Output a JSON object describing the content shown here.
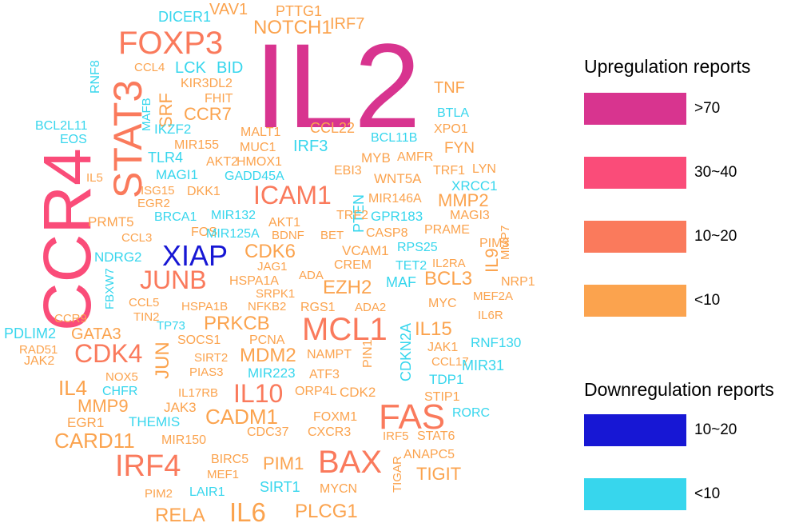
{
  "legend": {
    "up_title": "Upregulation reports",
    "down_title": "Downregulation reports",
    "up_items": [
      {
        "label": ">70",
        "color": "#d8348f"
      },
      {
        "label": "30~40",
        "color": "#fa4c79"
      },
      {
        "label": "10~20",
        "color": "#fa7a5c"
      },
      {
        "label": "<10",
        "color": "#fba34e"
      }
    ],
    "down_items": [
      {
        "label": "10~20",
        "color": "#1717d4"
      },
      {
        "label": "<10",
        "color": "#37d6ed"
      }
    ]
  },
  "words": [
    {
      "text": "IL2",
      "cat": "up_gt70"
    },
    {
      "text": "CCR4",
      "cat": "up_30_40"
    },
    {
      "text": "STAT3",
      "cat": "up_10_20"
    },
    {
      "text": "FOXP3",
      "cat": "up_10_20"
    },
    {
      "text": "XIAP",
      "cat": "down_10_20"
    },
    {
      "text": "MCL1",
      "cat": "up_10_20"
    },
    {
      "text": "FAS",
      "cat": "up_10_20"
    },
    {
      "text": "BAX",
      "cat": "up_10_20"
    },
    {
      "text": "IRF4",
      "cat": "up_10_20"
    },
    {
      "text": "JUNB",
      "cat": "up_10_20"
    },
    {
      "text": "CDK4",
      "cat": "up_10_20"
    },
    {
      "text": "ICAM1",
      "cat": "up_10_20"
    },
    {
      "text": "IL10",
      "cat": "up_10_20"
    },
    {
      "text": "IL6",
      "cat": "up_lt10"
    },
    {
      "text": "CADM1",
      "cat": "up_lt10"
    },
    {
      "text": "CARD11",
      "cat": "up_lt10"
    },
    {
      "text": "NOTCH1",
      "cat": "up_lt10"
    },
    {
      "text": "PRKCB",
      "cat": "up_lt10"
    },
    {
      "text": "CDK6",
      "cat": "up_lt10"
    },
    {
      "text": "MDM2",
      "cat": "up_lt10"
    },
    {
      "text": "EZH2",
      "cat": "up_lt10"
    },
    {
      "text": "BCL3",
      "cat": "up_lt10"
    },
    {
      "text": "IL15",
      "cat": "up_lt10"
    },
    {
      "text": "PLCG1",
      "cat": "up_lt10"
    },
    {
      "text": "RELA",
      "cat": "up_lt10"
    },
    {
      "text": "MMP9",
      "cat": "up_lt10"
    },
    {
      "text": "IL4",
      "cat": "up_lt10"
    },
    {
      "text": "GATA3",
      "cat": "up_lt10"
    },
    {
      "text": "TIGIT",
      "cat": "up_lt10"
    },
    {
      "text": "PIM1",
      "cat": "up_lt10"
    },
    {
      "text": "MMP2",
      "cat": "up_lt10"
    },
    {
      "text": "CCR7",
      "cat": "up_lt10"
    },
    {
      "text": "SRF",
      "cat": "up_lt10"
    },
    {
      "text": "JUN",
      "cat": "up_lt10"
    },
    {
      "text": "IL9",
      "cat": "up_lt10"
    },
    {
      "text": "VAV1",
      "cat": "up_lt10"
    },
    {
      "text": "IRF7",
      "cat": "up_lt10"
    },
    {
      "text": "PTTG1",
      "cat": "up_lt10"
    },
    {
      "text": "DICER1",
      "cat": "down_lt10"
    },
    {
      "text": "LCK",
      "cat": "down_lt10"
    },
    {
      "text": "BID",
      "cat": "down_lt10"
    },
    {
      "text": "CCL4",
      "cat": "up_lt10"
    },
    {
      "text": "KIR3DL2",
      "cat": "up_lt10"
    },
    {
      "text": "FHIT",
      "cat": "up_lt10"
    },
    {
      "text": "RNF8",
      "cat": "down_lt10"
    },
    {
      "text": "MAFB",
      "cat": "down_lt10"
    },
    {
      "text": "TNF",
      "cat": "up_lt10"
    },
    {
      "text": "BTLA",
      "cat": "down_lt10"
    },
    {
      "text": "XPO1",
      "cat": "up_lt10"
    },
    {
      "text": "BCL2L11",
      "cat": "down_lt10"
    },
    {
      "text": "EOS",
      "cat": "down_lt10"
    },
    {
      "text": "IKZF2",
      "cat": "down_lt10"
    },
    {
      "text": "MALT1",
      "cat": "up_lt10"
    },
    {
      "text": "CCL22",
      "cat": "up_lt10"
    },
    {
      "text": "BCL11B",
      "cat": "down_lt10"
    },
    {
      "text": "MIR155",
      "cat": "up_lt10"
    },
    {
      "text": "MUC1",
      "cat": "up_lt10"
    },
    {
      "text": "IRF3",
      "cat": "down_lt10"
    },
    {
      "text": "FYN",
      "cat": "up_lt10"
    },
    {
      "text": "TLR4",
      "cat": "down_lt10"
    },
    {
      "text": "AKT2",
      "cat": "up_lt10"
    },
    {
      "text": "HMOX1",
      "cat": "up_lt10"
    },
    {
      "text": "MYB",
      "cat": "up_lt10"
    },
    {
      "text": "AMFR",
      "cat": "up_lt10"
    },
    {
      "text": "MAGI1",
      "cat": "down_lt10"
    },
    {
      "text": "GADD45A",
      "cat": "down_lt10"
    },
    {
      "text": "EBI3",
      "cat": "up_lt10"
    },
    {
      "text": "TRF1",
      "cat": "up_lt10"
    },
    {
      "text": "LYN",
      "cat": "up_lt10"
    },
    {
      "text": "IL5",
      "cat": "up_lt10"
    },
    {
      "text": "ISG15",
      "cat": "up_lt10"
    },
    {
      "text": "DKK1",
      "cat": "up_lt10"
    },
    {
      "text": "WNT5A",
      "cat": "up_lt10"
    },
    {
      "text": "XRCC1",
      "cat": "down_lt10"
    },
    {
      "text": "EGR2",
      "cat": "up_lt10"
    },
    {
      "text": "PTEN",
      "cat": "down_lt10"
    },
    {
      "text": "MIR146A",
      "cat": "up_lt10"
    },
    {
      "text": "BRCA1",
      "cat": "down_lt10"
    },
    {
      "text": "MIR132",
      "cat": "down_lt10"
    },
    {
      "text": "TRF2",
      "cat": "up_lt10"
    },
    {
      "text": "GPR183",
      "cat": "down_lt10"
    },
    {
      "text": "MAGI3",
      "cat": "up_lt10"
    },
    {
      "text": "PRMT5",
      "cat": "up_lt10"
    },
    {
      "text": "AKT1",
      "cat": "up_lt10"
    },
    {
      "text": "PRAME",
      "cat": "up_lt10"
    },
    {
      "text": "MMP7",
      "cat": "up_lt10"
    },
    {
      "text": "CCL3",
      "cat": "up_lt10"
    },
    {
      "text": "FOS",
      "cat": "up_lt10"
    },
    {
      "text": "MIR125A",
      "cat": "down_lt10"
    },
    {
      "text": "BDNF",
      "cat": "up_lt10"
    },
    {
      "text": "BET",
      "cat": "up_lt10"
    },
    {
      "text": "CASP8",
      "cat": "up_lt10"
    },
    {
      "text": "PIM3",
      "cat": "up_lt10"
    },
    {
      "text": "NDRG2",
      "cat": "down_lt10"
    },
    {
      "text": "RPS25",
      "cat": "down_lt10"
    },
    {
      "text": "VCAM1",
      "cat": "up_lt10"
    },
    {
      "text": "FBXW7",
      "cat": "down_lt10"
    },
    {
      "text": "JAG1",
      "cat": "up_lt10"
    },
    {
      "text": "CREM",
      "cat": "up_lt10"
    },
    {
      "text": "TET2",
      "cat": "down_lt10"
    },
    {
      "text": "IL2RA",
      "cat": "up_lt10"
    },
    {
      "text": "HSPA1A",
      "cat": "up_lt10"
    },
    {
      "text": "ADA",
      "cat": "up_lt10"
    },
    {
      "text": "MAF",
      "cat": "down_lt10"
    },
    {
      "text": "NRP1",
      "cat": "up_lt10"
    },
    {
      "text": "SRPK1",
      "cat": "up_lt10"
    },
    {
      "text": "MEF2A",
      "cat": "up_lt10"
    },
    {
      "text": "CCL5",
      "cat": "up_lt10"
    },
    {
      "text": "HSPA1B",
      "cat": "up_lt10"
    },
    {
      "text": "NFKB2",
      "cat": "up_lt10"
    },
    {
      "text": "RGS1",
      "cat": "up_lt10"
    },
    {
      "text": "ADA2",
      "cat": "up_lt10"
    },
    {
      "text": "MYC",
      "cat": "up_lt10"
    },
    {
      "text": "TIN2",
      "cat": "up_lt10"
    },
    {
      "text": "CDKN2A",
      "cat": "down_lt10"
    },
    {
      "text": "IL6R",
      "cat": "up_lt10"
    },
    {
      "text": "CCR9",
      "cat": "up_lt10"
    },
    {
      "text": "TP73",
      "cat": "down_lt10"
    },
    {
      "text": "PDLIM2",
      "cat": "down_lt10"
    },
    {
      "text": "RAD51",
      "cat": "up_lt10"
    },
    {
      "text": "SOCS1",
      "cat": "up_lt10"
    },
    {
      "text": "PCNA",
      "cat": "up_lt10"
    },
    {
      "text": "PIN1",
      "cat": "up_lt10"
    },
    {
      "text": "RNF130",
      "cat": "down_lt10"
    },
    {
      "text": "JAK1",
      "cat": "up_lt10"
    },
    {
      "text": "JAK2",
      "cat": "up_lt10"
    },
    {
      "text": "SIRT2",
      "cat": "up_lt10"
    },
    {
      "text": "NAMPT",
      "cat": "up_lt10"
    },
    {
      "text": "CCL17",
      "cat": "up_lt10"
    },
    {
      "text": "MIR31",
      "cat": "down_lt10"
    },
    {
      "text": "PIAS3",
      "cat": "up_lt10"
    },
    {
      "text": "MIR223",
      "cat": "down_lt10"
    },
    {
      "text": "ATF3",
      "cat": "up_lt10"
    },
    {
      "text": "TDP1",
      "cat": "down_lt10"
    },
    {
      "text": "NOX5",
      "cat": "up_lt10"
    },
    {
      "text": "CHFR",
      "cat": "down_lt10"
    },
    {
      "text": "IL17RB",
      "cat": "up_lt10"
    },
    {
      "text": "ORP4L",
      "cat": "up_lt10"
    },
    {
      "text": "CDK2",
      "cat": "up_lt10"
    },
    {
      "text": "STIP1",
      "cat": "up_lt10"
    },
    {
      "text": "JAK3",
      "cat": "up_lt10"
    },
    {
      "text": "THEMIS",
      "cat": "down_lt10"
    },
    {
      "text": "FOXM1",
      "cat": "up_lt10"
    },
    {
      "text": "RORC",
      "cat": "down_lt10"
    },
    {
      "text": "EGR1",
      "cat": "up_lt10"
    },
    {
      "text": "CDC37",
      "cat": "up_lt10"
    },
    {
      "text": "CXCR3",
      "cat": "up_lt10"
    },
    {
      "text": "IRF5",
      "cat": "up_lt10"
    },
    {
      "text": "STAT6",
      "cat": "up_lt10"
    },
    {
      "text": "MIR150",
      "cat": "up_lt10"
    },
    {
      "text": "ANAPC5",
      "cat": "up_lt10"
    },
    {
      "text": "BIRC5",
      "cat": "up_lt10"
    },
    {
      "text": "TIGAR",
      "cat": "up_lt10"
    },
    {
      "text": "MEF1",
      "cat": "up_lt10"
    },
    {
      "text": "SIRT1",
      "cat": "down_lt10"
    },
    {
      "text": "MYCN",
      "cat": "up_lt10"
    },
    {
      "text": "PIM2",
      "cat": "up_lt10"
    },
    {
      "text": "LAIR1",
      "cat": "down_lt10"
    }
  ]
}
